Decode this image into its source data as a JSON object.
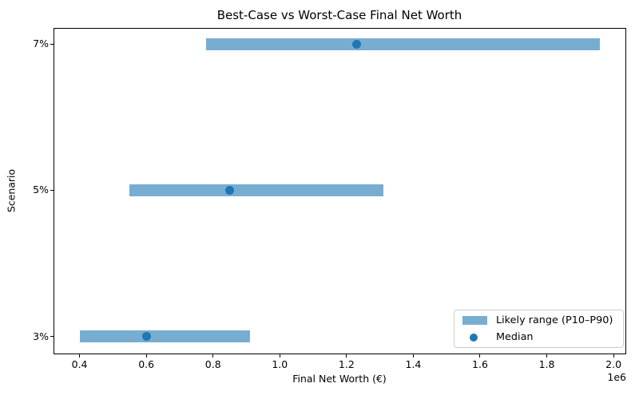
{
  "chart_data": {
    "type": "bar",
    "orientation": "horizontal",
    "title": "Best-Case vs Worst-Case Final Net Worth",
    "xlabel": "Final Net Worth (€)",
    "ylabel": "Scenario",
    "x_offset_label": "1e6",
    "xlim": [
      322000,
      2038000
    ],
    "xtick_values": [
      400000,
      600000,
      800000,
      1000000,
      1200000,
      1400000,
      1600000,
      1800000,
      2000000
    ],
    "xtick_labels": [
      "0.4",
      "0.6",
      "0.8",
      "1.0",
      "1.2",
      "1.4",
      "1.6",
      "1.8",
      "2.0"
    ],
    "rows_top_to_bottom": [
      {
        "label": "7%",
        "p10": 780000,
        "median": 1230000,
        "p90": 1960000
      },
      {
        "label": "5%",
        "p10": 550000,
        "median": 850000,
        "p90": 1310000
      },
      {
        "label": "3%",
        "p10": 400000,
        "median": 600000,
        "p90": 910000
      }
    ],
    "legend": {
      "items": [
        {
          "label": "Likely range (P10–P90)",
          "marker": "rect"
        },
        {
          "label": "Median",
          "marker": "dot"
        }
      ],
      "position": "lower right"
    },
    "colors": {
      "range_bar": "#78add2",
      "median_dot": "#1f77b4"
    },
    "grid": false
  }
}
